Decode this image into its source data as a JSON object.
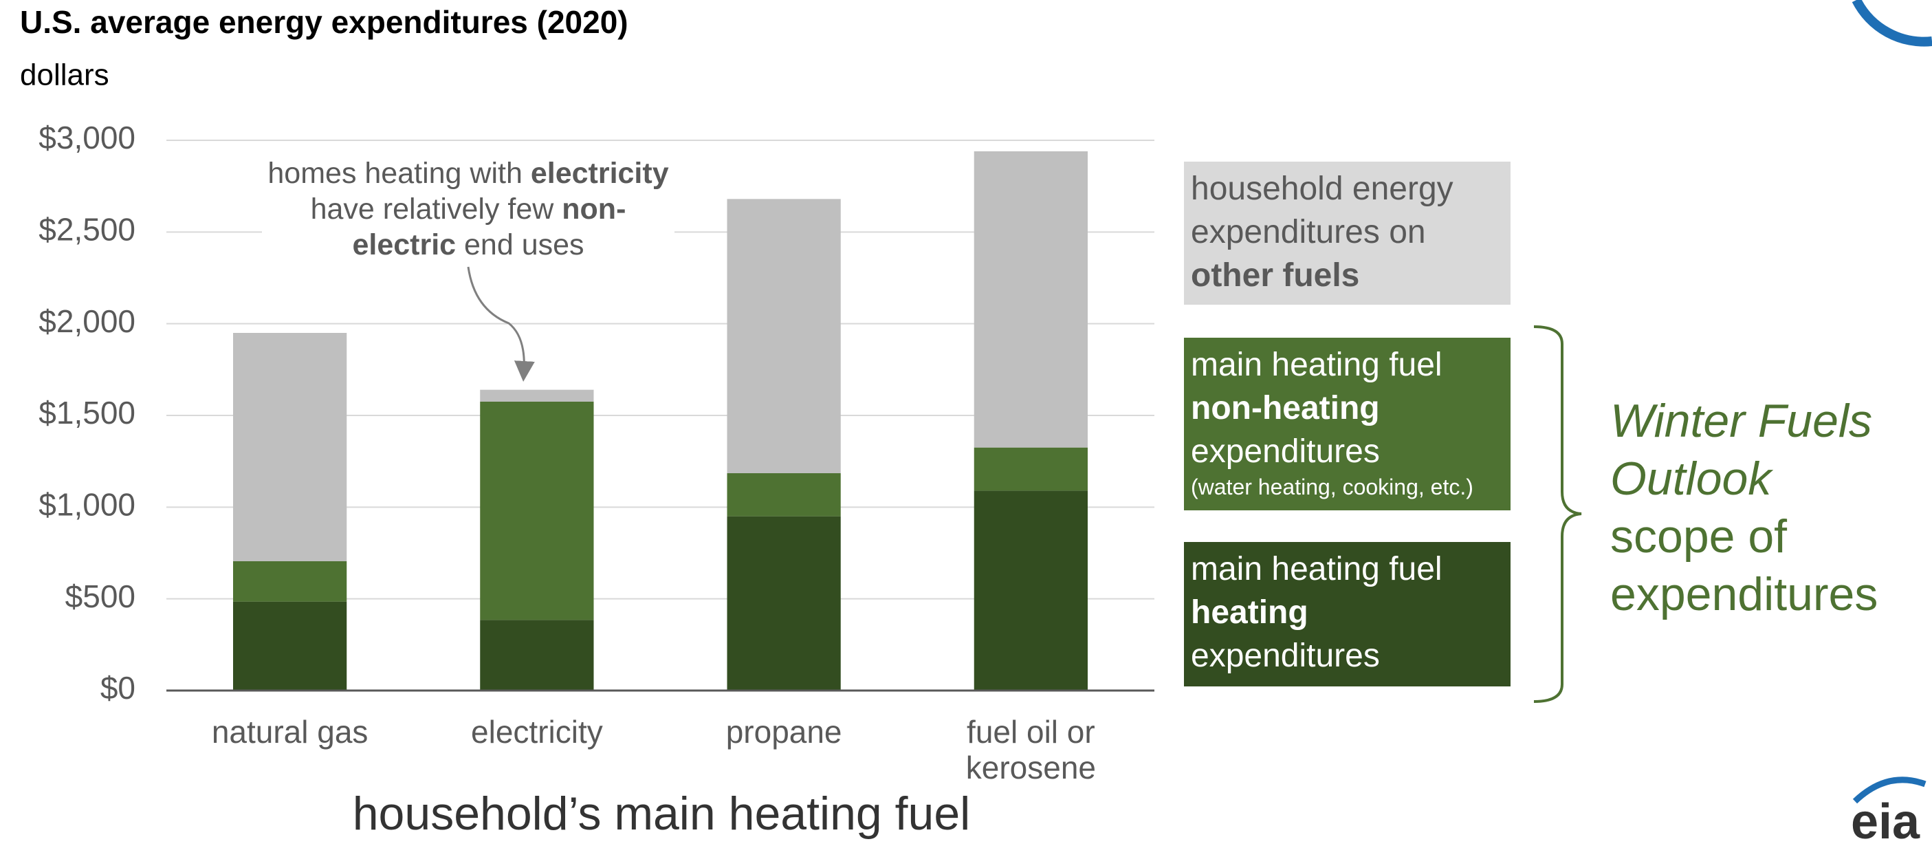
{
  "chart_data": {
    "type": "stacked_bar",
    "title": "U.S. average energy expenditures (2020)",
    "y_label": "dollars",
    "x_label": "household’s main heating fuel",
    "categories": [
      "natural gas",
      "electricity",
      "propane",
      "fuel oil or kerosene"
    ],
    "series": [
      {
        "name": [
          {
            "text": "main heating fuel "
          },
          {
            "text": "heating",
            "bold": true
          },
          {
            "text": " expenditures"
          }
        ],
        "color": "#334d20",
        "legend_color": "#334d20",
        "legend_text_color": "#ffffff",
        "values": [
          485,
          385,
          950,
          1090
        ]
      },
      {
        "name": [
          {
            "text": "main heating fuel "
          },
          {
            "text": "non-heating",
            "bold": true
          },
          {
            "text": " expenditures"
          },
          {
            "text": "(water heating, cooking, etc.)",
            "small": true
          }
        ],
        "color": "#4e7232",
        "legend_color": "#4e7232",
        "legend_text_color": "#ffffff",
        "values": [
          220,
          1190,
          235,
          235
        ]
      },
      {
        "name": [
          {
            "text": "household energy expenditures on "
          },
          {
            "text": "other fuels",
            "bold": true
          }
        ],
        "color": "#bfbfbf",
        "legend_color": "#d9d9d9",
        "legend_text_color": "#595959",
        "values": [
          1245,
          65,
          1495,
          1615
        ]
      }
    ],
    "ylim": [
      0,
      3000
    ],
    "yticks": [
      {
        "value": 0,
        "label": "$0"
      },
      {
        "value": 500,
        "label": "$500"
      },
      {
        "value": 1000,
        "label": "$1,000"
      },
      {
        "value": 1500,
        "label": "$1,500"
      },
      {
        "value": 2000,
        "label": "$2,000"
      },
      {
        "value": 2500,
        "label": "$2,500"
      },
      {
        "value": 3000,
        "label": "$3,000"
      }
    ],
    "grid": true,
    "annotation": [
      {
        "text": "homes heating with "
      },
      {
        "text": "electricity",
        "bold": true
      },
      {
        "text": " have relatively few "
      },
      {
        "text": "non-electric",
        "bold": true
      },
      {
        "text": " end uses"
      }
    ],
    "side_label": [
      {
        "text": "Winter Fuels Outlook",
        "italic": true
      },
      {
        "text": "scope of expenditures"
      }
    ],
    "side_label_color": "#4e7232",
    "logo": "eia"
  }
}
